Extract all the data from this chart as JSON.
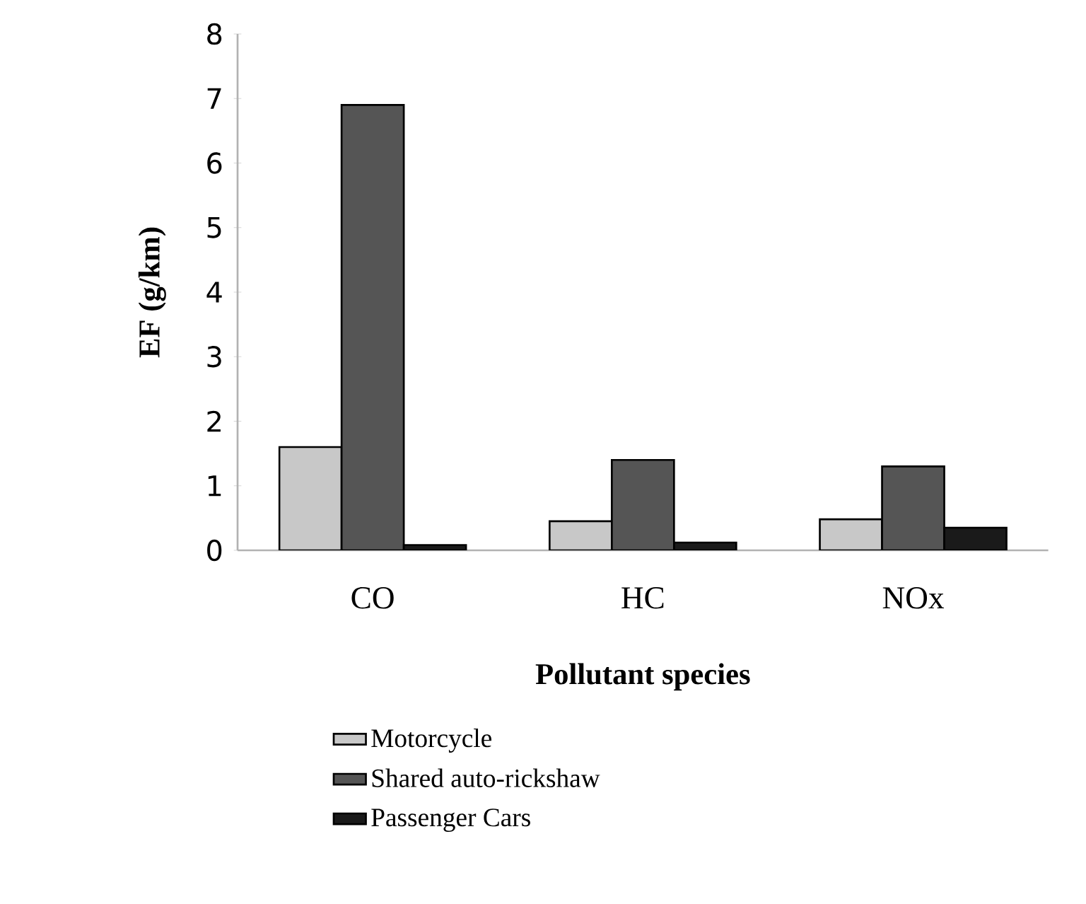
{
  "chart_data": {
    "type": "bar",
    "xlabel": "Pollutant species",
    "ylabel": "EF (g/km)",
    "categories": [
      "CO",
      "HC",
      "NOx"
    ],
    "series": [
      {
        "name": "Motorcycle",
        "color": "#c8c8c8",
        "values": [
          1.6,
          0.45,
          0.48
        ]
      },
      {
        "name": "Shared auto-rickshaw",
        "color": "#555555",
        "values": [
          6.9,
          1.4,
          1.3
        ]
      },
      {
        "name": "Passenger Cars",
        "color": "#1a1a1a",
        "values": [
          0.08,
          0.12,
          0.35
        ]
      }
    ],
    "ylim": [
      0,
      8
    ],
    "yticks": [
      0,
      1,
      2,
      3,
      4,
      5,
      6,
      7,
      8
    ],
    "grid": false,
    "legend": "bottom"
  }
}
